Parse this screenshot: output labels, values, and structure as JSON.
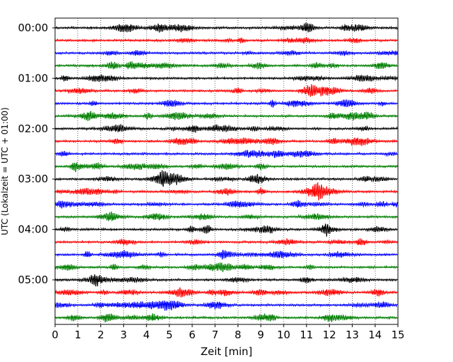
{
  "chart_data": {
    "type": "line",
    "title": "",
    "xlabel": "Zeit  [min]",
    "ylabel": "UTC (Lokalzeit = UTC + 01:00)",
    "xlim": [
      0,
      15
    ],
    "x_ticks": [
      "0",
      "1",
      "2",
      "3",
      "4",
      "5",
      "6",
      "7",
      "8",
      "9",
      "10",
      "11",
      "12",
      "13",
      "14",
      "15"
    ],
    "y_ticks": [
      "00:00",
      "01:00",
      "02:00",
      "03:00",
      "04:00",
      "05:00"
    ],
    "trace_interval_minutes": 15,
    "trace_count": 24,
    "trace_colors": [
      "#000000",
      "#ff0000",
      "#0000ff",
      "#007f00"
    ],
    "grid": {
      "vertical_dotted": true
    }
  }
}
